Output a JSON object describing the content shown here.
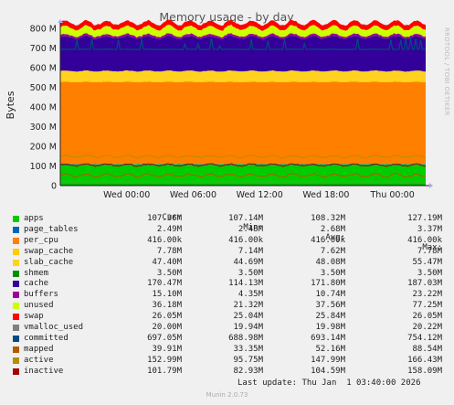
{
  "chart_data": {
    "type": "area",
    "title": "Memory usage - by day",
    "ylabel": "Bytes",
    "side_text": "RRDTOOL / TOBI OETIKER",
    "y_ticks": [
      "0",
      "100 M",
      "200 M",
      "300 M",
      "400 M",
      "500 M",
      "600 M",
      "700 M",
      "800 M"
    ],
    "y_tick_values": [
      0,
      100,
      200,
      300,
      400,
      500,
      600,
      700,
      800
    ],
    "ylim": [
      0,
      800
    ],
    "x_ticks": [
      "Wed 00:00",
      "Wed 06:00",
      "Wed 12:00",
      "Wed 18:00",
      "Thu 00:00"
    ],
    "x_tick_hours": [
      6,
      12,
      18,
      24,
      30
    ],
    "x_range_hours": [
      0,
      33
    ],
    "grid": true,
    "stack_order": [
      "apps",
      "page_tables",
      "per_cpu",
      "swap_cache",
      "slab_cache",
      "cache",
      "buffers",
      "unused",
      "swap"
    ],
    "line_series": [
      "shmem",
      "vmalloc_used",
      "committed",
      "mapped",
      "active",
      "inactive"
    ],
    "columns": [
      "Cur:",
      "Min:",
      "Avg:",
      "Max:"
    ],
    "series": [
      {
        "name": "apps",
        "color": "#00cc00",
        "cur": "107.36M",
        "min": "107.14M",
        "avg": "108.32M",
        "max": "127.19M",
        "value_mb": 107.4
      },
      {
        "name": "page_tables",
        "color": "#0066b3",
        "cur": "2.49M",
        "min": "2.48M",
        "avg": "2.68M",
        "max": "3.37M",
        "value_mb": 2.5
      },
      {
        "name": "per_cpu",
        "color": "#ff8000",
        "cur": "416.00k",
        "min": "416.00k",
        "avg": "416.00k",
        "max": "416.00k",
        "value_mb": 0.4
      },
      {
        "name": "swap_cache",
        "color": "#ffcc00",
        "cur": "7.78M",
        "min": "7.14M",
        "avg": "7.62M",
        "max": "7.78M",
        "value_mb": 7.8
      },
      {
        "name": "slab_cache",
        "color": "#ffd21f",
        "cur": "47.40M",
        "min": "44.69M",
        "avg": "48.08M",
        "max": "55.47M",
        "value_mb": 47.4
      },
      {
        "name": "shmem",
        "color": "#008f00",
        "cur": "3.50M",
        "min": "3.50M",
        "avg": "3.50M",
        "max": "3.50M",
        "value_mb": 3.5
      },
      {
        "name": "cache",
        "color": "#330099",
        "cur": "170.47M",
        "min": "114.13M",
        "avg": "171.80M",
        "max": "187.03M",
        "value_mb": 170.5
      },
      {
        "name": "buffers",
        "color": "#990099",
        "cur": "15.10M",
        "min": "4.35M",
        "avg": "10.74M",
        "max": "23.22M",
        "value_mb": 15.1
      },
      {
        "name": "unused",
        "color": "#ccff00",
        "cur": "36.18M",
        "min": "21.32M",
        "avg": "37.56M",
        "max": "77.25M",
        "value_mb": 36.2
      },
      {
        "name": "swap",
        "color": "#ff0000",
        "cur": "26.05M",
        "min": "25.04M",
        "avg": "25.84M",
        "max": "26.05M",
        "value_mb": 26.1
      },
      {
        "name": "vmalloc_used",
        "color": "#808080",
        "cur": "20.00M",
        "min": "19.94M",
        "avg": "19.98M",
        "max": "20.22M",
        "value_mb": 20.0
      },
      {
        "name": "committed",
        "color": "#004b7f",
        "cur": "697.05M",
        "min": "688.98M",
        "avg": "693.14M",
        "max": "754.12M",
        "value_mb": 697.1
      },
      {
        "name": "mapped",
        "color": "#b35a00",
        "cur": "39.91M",
        "min": "33.35M",
        "avg": "52.16M",
        "max": "88.54M",
        "value_mb": 39.9
      },
      {
        "name": "active",
        "color": "#b38f00",
        "cur": "152.99M",
        "min": "95.75M",
        "avg": "147.99M",
        "max": "166.43M",
        "value_mb": 153.0
      },
      {
        "name": "inactive",
        "color": "#a30000",
        "cur": "101.79M",
        "min": "82.93M",
        "avg": "104.59M",
        "max": "158.09M",
        "value_mb": 101.8
      }
    ],
    "committed_spikes": [
      {
        "hour": 1.5,
        "value": 745
      },
      {
        "hour": 2.9,
        "value": 748
      },
      {
        "hour": 5.2,
        "value": 743
      },
      {
        "hour": 7.4,
        "value": 745
      },
      {
        "hour": 11.2,
        "value": 720
      },
      {
        "hour": 12.5,
        "value": 722
      },
      {
        "hour": 13.7,
        "value": 750
      },
      {
        "hour": 14.4,
        "value": 710
      },
      {
        "hour": 17.2,
        "value": 745
      },
      {
        "hour": 18.8,
        "value": 738
      },
      {
        "hour": 20.2,
        "value": 745
      },
      {
        "hour": 22.1,
        "value": 722
      },
      {
        "hour": 26.8,
        "value": 748
      },
      {
        "hour": 29.9,
        "value": 745
      },
      {
        "hour": 30.8,
        "value": 742
      },
      {
        "hour": 31.2,
        "value": 752
      },
      {
        "hour": 31.6,
        "value": 754
      },
      {
        "hour": 32.1,
        "value": 748
      },
      {
        "hour": 32.6,
        "value": 740
      }
    ],
    "last_update": "Last update: Thu Jan  1 03:40:00 2026",
    "generator": "Munin 2.0.73"
  }
}
